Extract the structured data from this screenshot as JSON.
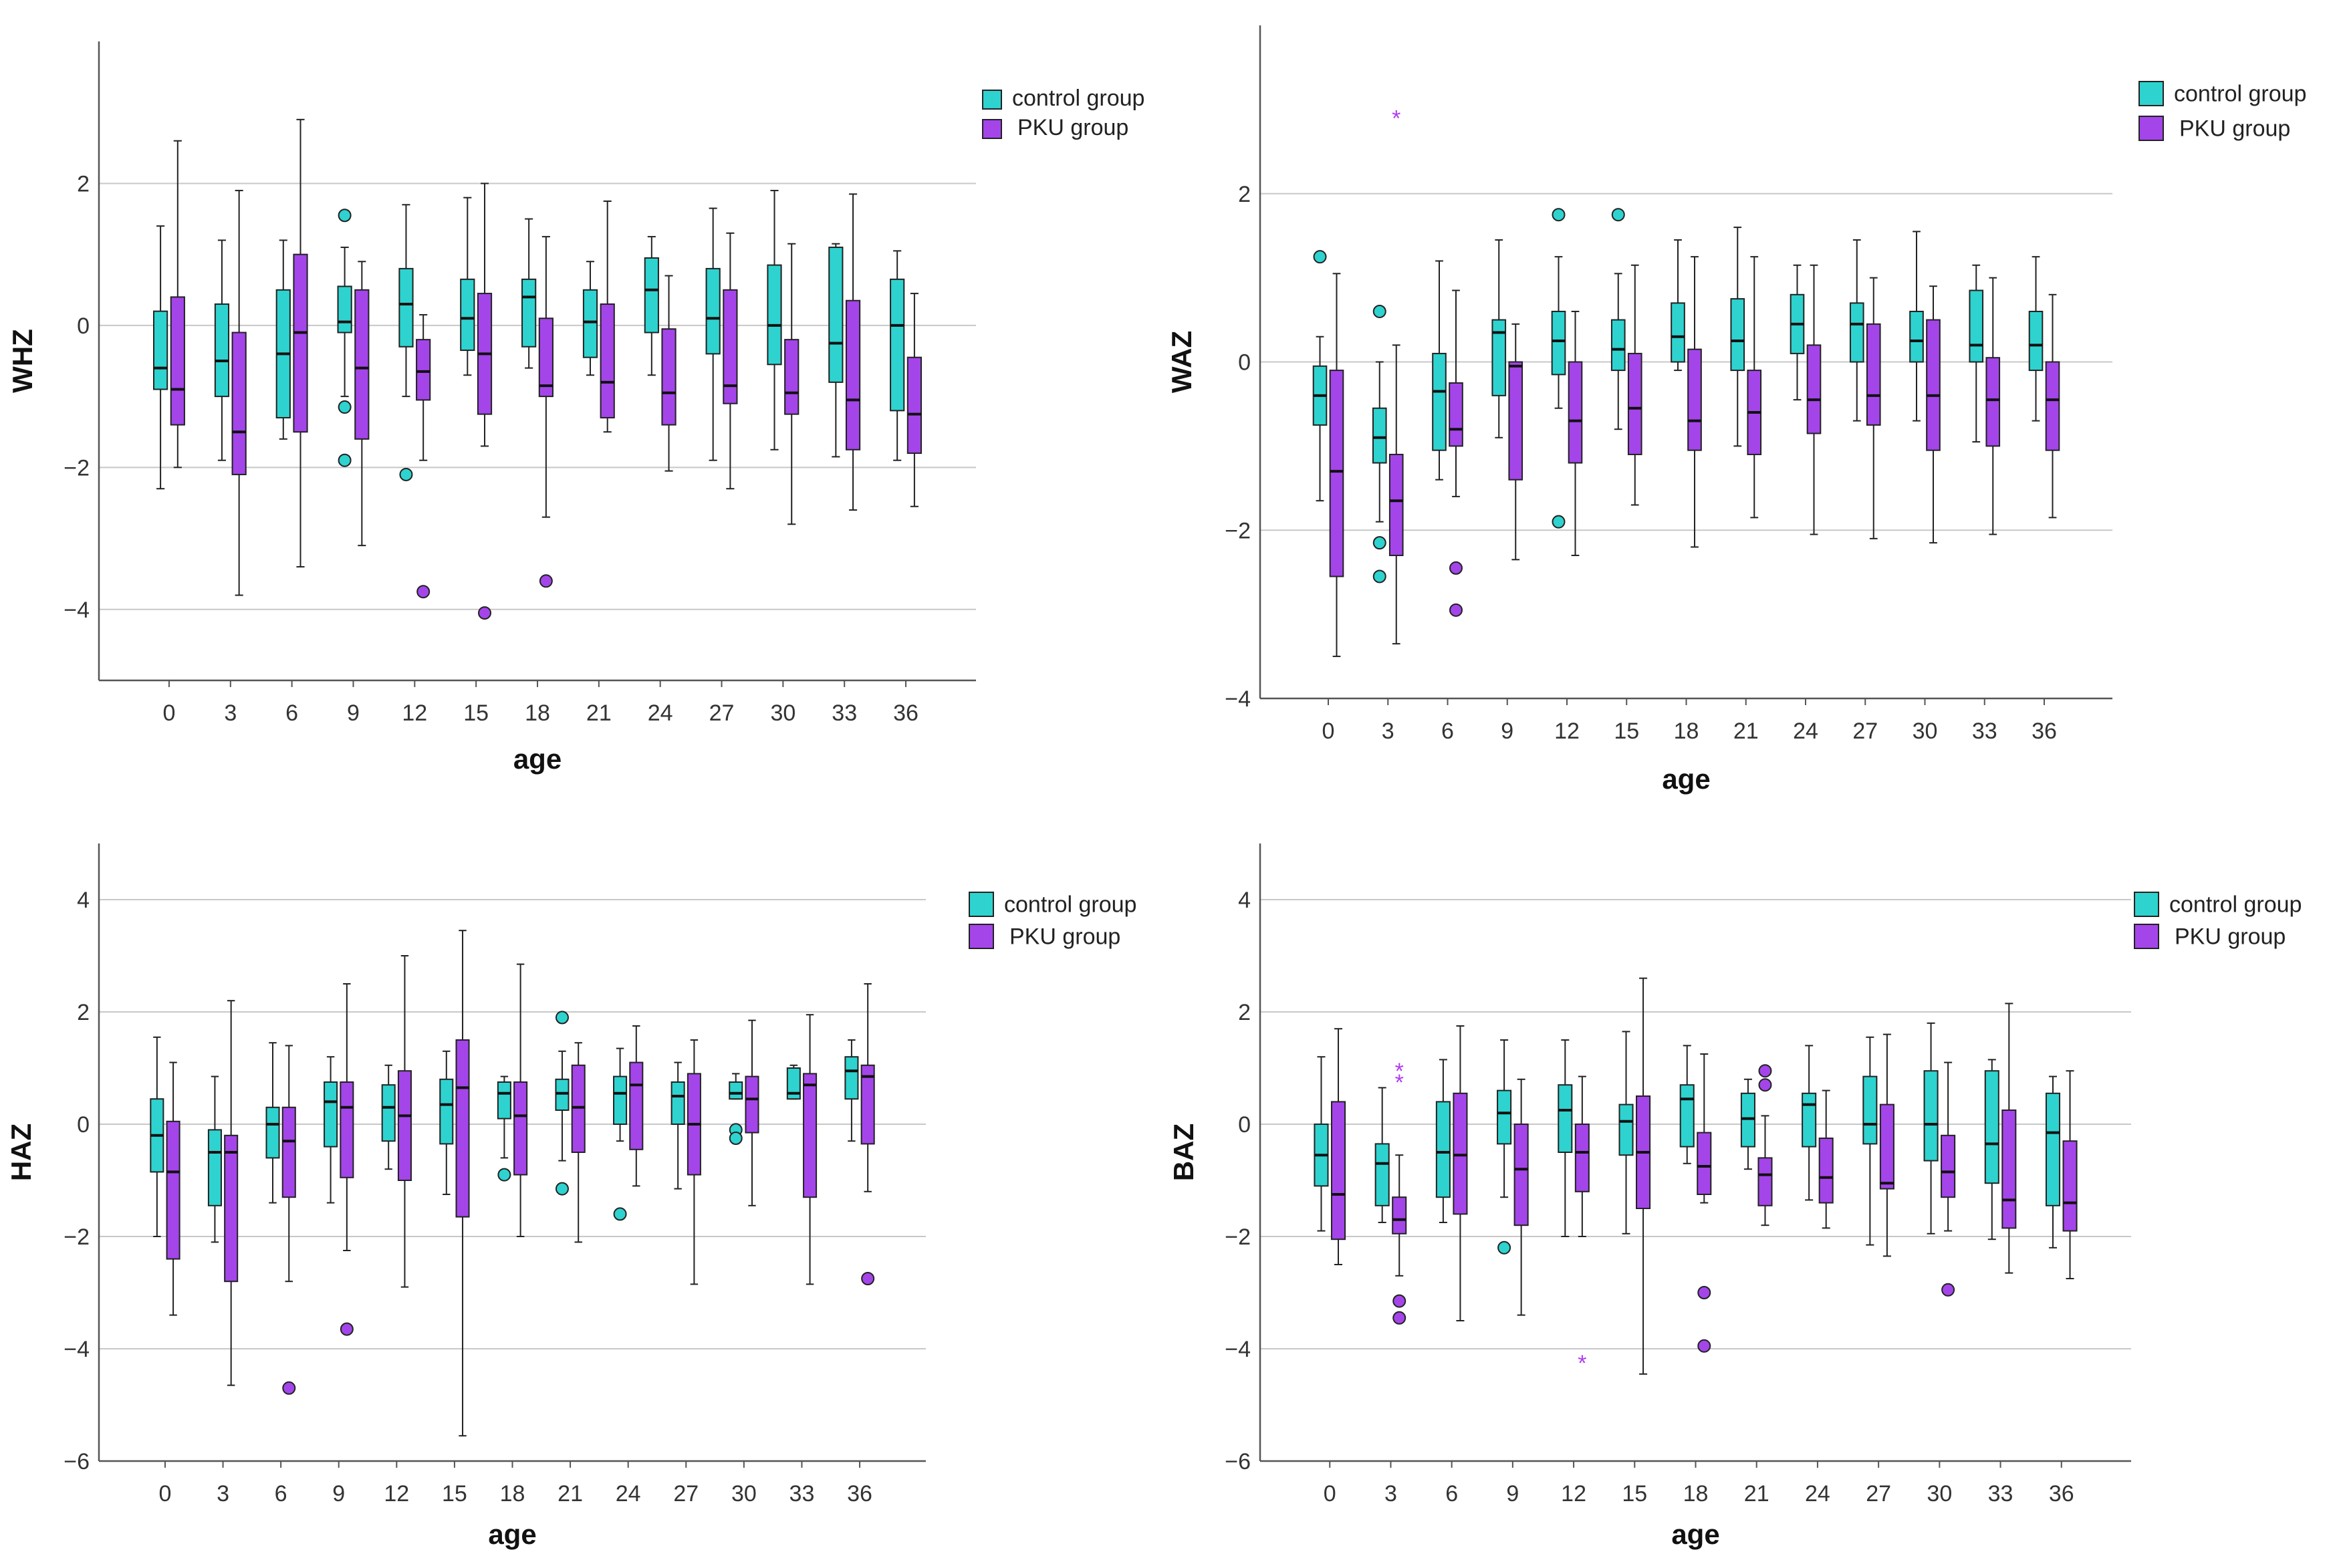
{
  "colors": {
    "control": "#2ed3cf",
    "pku": "#a445ea",
    "grid": "#c8c8c8",
    "axis": "#555555"
  },
  "legend": {
    "control_label": "control group",
    "pku_label": "PKU group"
  },
  "chart_data": [
    {
      "type": "boxplot",
      "ylabel": "WHZ",
      "xlabel": "age",
      "categories": [
        "0",
        "3",
        "6",
        "9",
        "12",
        "15",
        "18",
        "21",
        "24",
        "27",
        "30",
        "33",
        "36"
      ],
      "ylim": [
        -5,
        4
      ],
      "yticks": [
        -4,
        -2,
        0,
        2
      ],
      "ytick_labels": [
        "−4",
        "−2",
        "0",
        "2"
      ],
      "legend_position": "top-right",
      "series": [
        {
          "name": "control group",
          "boxes": [
            [
              -2.3,
              -0.9,
              -0.6,
              0.2,
              1.4
            ],
            [
              -1.9,
              -1.0,
              -0.5,
              0.3,
              1.2
            ],
            [
              -1.6,
              -1.3,
              -0.4,
              0.5,
              1.2
            ],
            [
              -1.0,
              -0.1,
              0.05,
              0.55,
              1.1
            ],
            [
              -1.0,
              -0.3,
              0.3,
              0.8,
              1.7
            ],
            [
              -0.7,
              -0.35,
              0.1,
              0.65,
              1.8
            ],
            [
              -0.6,
              -0.3,
              0.4,
              0.65,
              1.5
            ],
            [
              -0.7,
              -0.45,
              0.05,
              0.5,
              0.9
            ],
            [
              -0.7,
              -0.1,
              0.5,
              0.95,
              1.25
            ],
            [
              -1.9,
              -0.4,
              0.1,
              0.8,
              1.65
            ],
            [
              -1.75,
              -0.55,
              0.0,
              0.85,
              1.9
            ],
            [
              -1.85,
              -0.8,
              -0.25,
              1.1,
              1.15
            ],
            [
              -1.9,
              -1.2,
              0.0,
              0.65,
              1.05
            ]
          ],
          "outliers": [
            [
              9,
              1.55
            ],
            [
              9,
              -1.15
            ],
            [
              9,
              -1.9
            ],
            [
              12,
              -2.1
            ]
          ]
        },
        {
          "name": "PKU group",
          "boxes": [
            [
              -2.0,
              -1.4,
              -0.9,
              0.4,
              2.6
            ],
            [
              -3.8,
              -2.1,
              -1.5,
              -0.1,
              1.9
            ],
            [
              -3.4,
              -1.5,
              -0.1,
              1.0,
              2.9
            ],
            [
              -3.1,
              -1.6,
              -0.6,
              0.5,
              0.9
            ],
            [
              -1.9,
              -1.05,
              -0.65,
              -0.2,
              0.15
            ],
            [
              -1.7,
              -1.25,
              -0.4,
              0.45,
              2.0
            ],
            [
              -2.7,
              -1.0,
              -0.85,
              0.1,
              1.25
            ],
            [
              -1.5,
              -1.3,
              -0.8,
              0.3,
              1.75
            ],
            [
              -2.05,
              -1.4,
              -0.95,
              -0.05,
              0.7
            ],
            [
              -2.3,
              -1.1,
              -0.85,
              0.5,
              1.3
            ],
            [
              -2.8,
              -1.25,
              -0.95,
              -0.2,
              1.15
            ],
            [
              -2.6,
              -1.75,
              -1.05,
              0.35,
              1.85
            ],
            [
              -2.55,
              -1.8,
              -1.25,
              -0.45,
              0.45
            ]
          ],
          "outliers": [
            [
              12,
              -3.75
            ],
            [
              15,
              -4.05
            ],
            [
              18,
              -3.6
            ]
          ]
        }
      ]
    },
    {
      "type": "boxplot",
      "ylabel": "WAZ",
      "xlabel": "age",
      "categories": [
        "0",
        "3",
        "6",
        "9",
        "12",
        "15",
        "18",
        "21",
        "24",
        "27",
        "30",
        "33",
        "36"
      ],
      "ylim": [
        -4,
        4
      ],
      "yticks": [
        -4,
        -2,
        0,
        2
      ],
      "ytick_labels": [
        "−4",
        "−2",
        "0",
        "2"
      ],
      "legend_position": "top-right",
      "series": [
        {
          "name": "control group",
          "boxes": [
            [
              -1.65,
              -0.75,
              -0.4,
              -0.05,
              0.3
            ],
            [
              -1.9,
              -1.2,
              -0.9,
              -0.55,
              0.0
            ],
            [
              -1.4,
              -1.05,
              -0.35,
              0.1,
              1.2
            ],
            [
              -0.9,
              -0.4,
              0.35,
              0.5,
              1.45
            ],
            [
              -0.55,
              -0.15,
              0.25,
              0.6,
              1.25
            ],
            [
              -0.8,
              -0.1,
              0.15,
              0.5,
              1.05
            ],
            [
              -0.1,
              0.0,
              0.3,
              0.7,
              1.45
            ],
            [
              -1.0,
              -0.1,
              0.25,
              0.75,
              1.6
            ],
            [
              -0.45,
              0.1,
              0.45,
              0.8,
              1.15
            ],
            [
              -0.7,
              0.0,
              0.45,
              0.7,
              1.45
            ],
            [
              -0.7,
              0.0,
              0.25,
              0.6,
              1.55
            ],
            [
              -0.95,
              0.0,
              0.2,
              0.85,
              1.15
            ],
            [
              -0.7,
              -0.1,
              0.2,
              0.6,
              1.25
            ]
          ],
          "outliers": [
            [
              0,
              1.25
            ],
            [
              3,
              0.6
            ],
            [
              3,
              -2.15
            ],
            [
              3,
              -2.55
            ],
            [
              12,
              1.75
            ],
            [
              12,
              -1.9
            ],
            [
              15,
              1.75
            ]
          ]
        },
        {
          "name": "PKU group",
          "boxes": [
            [
              -3.5,
              -2.55,
              -1.3,
              -0.1,
              1.05
            ],
            [
              -3.35,
              -2.3,
              -1.65,
              -1.1,
              0.2
            ],
            [
              -1.6,
              -1.0,
              -0.8,
              -0.25,
              0.85
            ],
            [
              -2.35,
              -1.4,
              -0.05,
              0.0,
              0.45
            ],
            [
              -2.3,
              -1.2,
              -0.7,
              0.0,
              0.6
            ],
            [
              -1.7,
              -1.1,
              -0.55,
              0.1,
              1.15
            ],
            [
              -2.2,
              -1.05,
              -0.7,
              0.15,
              1.25
            ],
            [
              -1.85,
              -1.1,
              -0.6,
              -0.1,
              1.25
            ],
            [
              -2.05,
              -0.85,
              -0.45,
              0.2,
              1.15
            ],
            [
              -2.1,
              -0.75,
              -0.4,
              0.45,
              1.0
            ],
            [
              -2.15,
              -1.05,
              -0.4,
              0.5,
              0.9
            ],
            [
              -2.05,
              -1.0,
              -0.45,
              0.05,
              1.0
            ],
            [
              -1.85,
              -1.05,
              -0.45,
              0.0,
              0.8
            ]
          ],
          "outliers": [
            [
              6,
              -2.45
            ],
            [
              6,
              -2.95
            ]
          ],
          "extremes": [
            [
              3,
              2.9
            ]
          ]
        }
      ]
    },
    {
      "type": "boxplot",
      "ylabel": "HAZ",
      "xlabel": "age",
      "categories": [
        "0",
        "3",
        "6",
        "9",
        "12",
        "15",
        "18",
        "21",
        "24",
        "27",
        "30",
        "33",
        "36"
      ],
      "ylim": [
        -6,
        5
      ],
      "yticks": [
        -6,
        -4,
        -2,
        0,
        2,
        4
      ],
      "ytick_labels": [
        "−6",
        "−4",
        "−2",
        "0",
        "2",
        "4"
      ],
      "legend_position": "top-right",
      "series": [
        {
          "name": "control group",
          "boxes": [
            [
              -2.0,
              -0.85,
              -0.2,
              0.45,
              1.55
            ],
            [
              -2.1,
              -1.45,
              -0.5,
              -0.1,
              0.85
            ],
            [
              -1.4,
              -0.6,
              0.0,
              0.3,
              1.45
            ],
            [
              -1.4,
              -0.4,
              0.4,
              0.75,
              1.2
            ],
            [
              -0.8,
              -0.3,
              0.3,
              0.7,
              1.05
            ],
            [
              -1.25,
              -0.35,
              0.35,
              0.8,
              1.3
            ],
            [
              -0.6,
              0.1,
              0.55,
              0.75,
              0.85
            ],
            [
              -0.65,
              0.25,
              0.55,
              0.8,
              1.3
            ],
            [
              -0.3,
              0.0,
              0.55,
              0.85,
              1.35
            ],
            [
              -1.15,
              0.0,
              0.5,
              0.75,
              1.1
            ],
            [
              0.45,
              0.45,
              0.55,
              0.75,
              0.9
            ],
            [
              0.45,
              0.45,
              0.55,
              1.0,
              1.05
            ],
            [
              -0.3,
              0.45,
              0.95,
              1.2,
              1.5
            ]
          ],
          "outliers": [
            [
              18,
              -0.9
            ],
            [
              21,
              1.9
            ],
            [
              21,
              -1.15
            ],
            [
              24,
              -1.6
            ],
            [
              30,
              -0.1
            ],
            [
              30,
              -0.25
            ]
          ]
        },
        {
          "name": "PKU group",
          "boxes": [
            [
              -3.4,
              -2.4,
              -0.85,
              0.05,
              1.1
            ],
            [
              -4.65,
              -2.8,
              -0.5,
              -0.2,
              2.2
            ],
            [
              -2.8,
              -1.3,
              -0.3,
              0.3,
              1.4
            ],
            [
              -2.25,
              -0.95,
              0.3,
              0.75,
              2.5
            ],
            [
              -2.9,
              -1.0,
              0.15,
              0.95,
              3.0
            ],
            [
              -5.55,
              -1.65,
              0.65,
              1.5,
              3.45
            ],
            [
              -2.0,
              -0.9,
              0.15,
              0.75,
              2.85
            ],
            [
              -2.1,
              -0.5,
              0.3,
              1.05,
              1.45
            ],
            [
              -1.1,
              -0.45,
              0.7,
              1.1,
              1.75
            ],
            [
              -2.85,
              -0.9,
              0.0,
              0.9,
              1.5
            ],
            [
              -1.45,
              -0.15,
              0.45,
              0.85,
              1.85
            ],
            [
              -2.85,
              -1.3,
              0.7,
              0.9,
              1.95
            ],
            [
              -1.2,
              -0.35,
              0.85,
              1.05,
              2.5
            ]
          ],
          "outliers": [
            [
              6,
              -4.7
            ],
            [
              9,
              -3.65
            ],
            [
              36,
              -2.75
            ]
          ]
        }
      ]
    },
    {
      "type": "boxplot",
      "ylabel": "BAZ",
      "xlabel": "age",
      "categories": [
        "0",
        "3",
        "6",
        "9",
        "12",
        "15",
        "18",
        "21",
        "24",
        "27",
        "30",
        "33",
        "36"
      ],
      "ylim": [
        -6,
        5
      ],
      "yticks": [
        -6,
        -4,
        -2,
        0,
        2,
        4
      ],
      "ytick_labels": [
        "−6",
        "−4",
        "−2",
        "0",
        "2",
        "4"
      ],
      "legend_position": "top-right",
      "series": [
        {
          "name": "control group",
          "boxes": [
            [
              -1.9,
              -1.1,
              -0.55,
              0.0,
              1.2
            ],
            [
              -1.75,
              -1.45,
              -0.7,
              -0.35,
              0.65
            ],
            [
              -1.75,
              -1.3,
              -0.5,
              0.4,
              1.15
            ],
            [
              -1.3,
              -0.35,
              0.2,
              0.6,
              1.5
            ],
            [
              -2.0,
              -0.5,
              0.25,
              0.7,
              1.5
            ],
            [
              -1.95,
              -0.55,
              0.05,
              0.35,
              1.65
            ],
            [
              -0.7,
              -0.4,
              0.45,
              0.7,
              1.4
            ],
            [
              -0.8,
              -0.4,
              0.1,
              0.55,
              0.8
            ],
            [
              -1.35,
              -0.4,
              0.35,
              0.55,
              1.4
            ],
            [
              -2.15,
              -0.35,
              0.0,
              0.85,
              1.55
            ],
            [
              -1.95,
              -0.65,
              0.0,
              0.95,
              1.8
            ],
            [
              -2.05,
              -1.05,
              -0.35,
              0.95,
              1.15
            ],
            [
              -2.2,
              -1.45,
              -0.15,
              0.55,
              0.85
            ]
          ],
          "outliers": [
            [
              9,
              -2.2
            ]
          ]
        },
        {
          "name": "PKU group",
          "boxes": [
            [
              -2.5,
              -2.05,
              -1.25,
              0.4,
              1.7
            ],
            [
              -2.7,
              -1.95,
              -1.7,
              -1.3,
              -0.55
            ],
            [
              -3.5,
              -1.6,
              -0.55,
              0.55,
              1.75
            ],
            [
              -3.4,
              -1.8,
              -0.8,
              0.0,
              0.8
            ],
            [
              -2.0,
              -1.2,
              -0.5,
              0.0,
              0.85
            ],
            [
              -4.45,
              -1.5,
              -0.5,
              0.5,
              2.6
            ],
            [
              -1.4,
              -1.25,
              -0.75,
              -0.15,
              1.25
            ],
            [
              -1.8,
              -1.45,
              -0.9,
              -0.6,
              0.15
            ],
            [
              -1.85,
              -1.4,
              -0.95,
              -0.25,
              0.6
            ],
            [
              -2.35,
              -1.15,
              -1.05,
              0.35,
              1.6
            ],
            [
              -1.9,
              -1.3,
              -0.85,
              -0.2,
              1.1
            ],
            [
              -2.65,
              -1.85,
              -1.35,
              0.25,
              2.15
            ],
            [
              -2.75,
              -1.9,
              -1.4,
              -0.3,
              0.95
            ]
          ],
          "outliers": [
            [
              3,
              -3.15
            ],
            [
              3,
              -3.45
            ],
            [
              18,
              -3.0
            ],
            [
              18,
              -3.95
            ],
            [
              21,
              0.95
            ],
            [
              21,
              0.7
            ],
            [
              30,
              -2.95
            ]
          ],
          "extremes": [
            [
              3,
              0.95
            ],
            [
              3,
              0.75
            ],
            [
              12,
              -4.25
            ]
          ]
        }
      ]
    }
  ]
}
